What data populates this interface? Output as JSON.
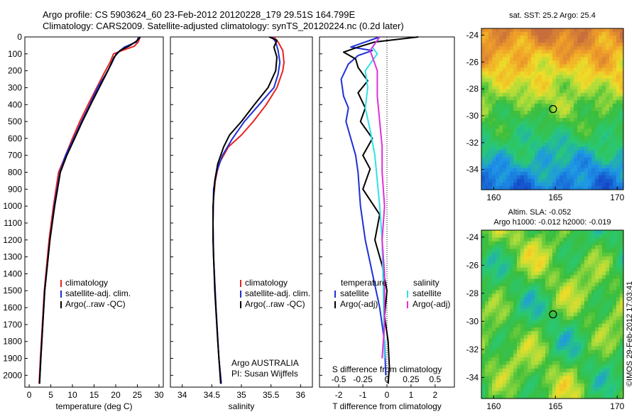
{
  "header": {
    "line1": "Argo profile: CS 5903624_60 23-Feb-2012 20120228_179 29.51S 164.799E",
    "line2": "Climatology: CARS2009. Satellite-adjusted climatology: synTS_20120224.nc (0.2d later)"
  },
  "credit": "©IMOS 29-Feb-2012 17:03:41",
  "colors": {
    "climatology": "#e8231f",
    "satellite": "#1f2fd6",
    "argo": "#000000",
    "sal_satellite": "#2fe2e6",
    "sal_argo": "#e030d8"
  },
  "chart_data": [
    {
      "type": "line",
      "xlabel": "temperature (deg C)",
      "ylabel": "",
      "xlim": [
        -1,
        31
      ],
      "ylim": [
        2070,
        0
      ],
      "xticks": [
        "0",
        "5",
        "10",
        "15",
        "20",
        "25",
        "30"
      ],
      "yticks": [
        "0",
        "100",
        "200",
        "300",
        "400",
        "500",
        "600",
        "700",
        "800",
        "900",
        "1000",
        "1100",
        "1200",
        "1300",
        "1400",
        "1500",
        "1600",
        "1700",
        "1800",
        "1900",
        "2000"
      ],
      "legend": [
        "climatology",
        "satellite-adj. clim.",
        "Argo(..raw -QC)"
      ],
      "series": [
        {
          "name": "climatology",
          "color_key": "climatology",
          "x": [
            25.6,
            25.2,
            24.3,
            21.5,
            19.5,
            18.7,
            17.2,
            15.6,
            13.6,
            11.7,
            10.0,
            8.4,
            6.8,
            5.6,
            4.6,
            3.5,
            2.6,
            2.3
          ],
          "y": [
            0,
            30,
            55,
            80,
            100,
            150,
            220,
            300,
            400,
            500,
            600,
            700,
            800,
            1000,
            1200,
            1500,
            1900,
            2050
          ]
        },
        {
          "name": "satellite-adj. clim.",
          "color_key": "satellite",
          "x": [
            25.3,
            24.8,
            22.0,
            20.1,
            19.0,
            17.7,
            15.8,
            14.0,
            12.1,
            10.3,
            8.4,
            7.1,
            5.8,
            4.8,
            3.6,
            2.7,
            2.4
          ],
          "y": [
            0,
            30,
            60,
            100,
            160,
            220,
            300,
            400,
            500,
            600,
            700,
            800,
            1000,
            1200,
            1500,
            1900,
            2050
          ]
        },
        {
          "name": "Argo(..raw -QC)",
          "color_key": "argo",
          "x": [
            25.7,
            24.8,
            23.0,
            21.0,
            19.6,
            18.2,
            16.4,
            14.4,
            12.3,
            10.5,
            8.7,
            7.2,
            5.9,
            4.8,
            3.6,
            2.7,
            2.4
          ],
          "y": [
            0,
            25,
            55,
            80,
            120,
            200,
            290,
            390,
            500,
            600,
            700,
            800,
            1000,
            1200,
            1500,
            1900,
            2050
          ]
        }
      ]
    },
    {
      "type": "line",
      "xlabel": "salinity",
      "xlim": [
        33.8,
        36.2
      ],
      "ylim": [
        2070,
        0
      ],
      "xticks": [
        "34",
        "34.5",
        "35",
        "35.5",
        "36"
      ],
      "legend": [
        "climatology",
        "satellite-adj. clim.",
        "Argo(..raw -QC)"
      ],
      "annotation": [
        "Argo AUSTRALIA",
        "PI: Susan Wijffels"
      ],
      "series": [
        {
          "name": "climatology",
          "color_key": "climatology",
          "x": [
            35.55,
            35.62,
            35.7,
            35.72,
            35.7,
            35.6,
            35.42,
            35.2,
            35.0,
            34.78,
            34.62,
            34.56,
            34.53,
            34.52,
            34.53,
            34.57,
            34.62,
            34.66
          ],
          "y": [
            0,
            30,
            80,
            150,
            200,
            300,
            400,
            500,
            580,
            650,
            750,
            850,
            950,
            1100,
            1300,
            1600,
            1900,
            2050
          ]
        },
        {
          "name": "satellite-adj. clim.",
          "color_key": "satellite",
          "x": [
            35.52,
            35.58,
            35.62,
            35.65,
            35.62,
            35.55,
            35.3,
            35.05,
            34.85,
            34.68,
            34.58,
            34.53,
            34.52,
            34.53,
            34.57,
            34.62,
            34.66
          ],
          "y": [
            0,
            30,
            80,
            150,
            220,
            300,
            400,
            500,
            600,
            700,
            800,
            900,
            1100,
            1300,
            1600,
            1900,
            2050
          ]
        },
        {
          "name": "Argo(..raw -QC)",
          "color_key": "argo",
          "x": [
            35.47,
            35.6,
            35.55,
            35.6,
            35.58,
            35.45,
            35.22,
            35.0,
            34.8,
            34.7,
            34.6,
            34.55,
            34.52,
            34.52,
            34.55,
            34.6,
            34.65
          ],
          "y": [
            0,
            20,
            60,
            120,
            200,
            300,
            400,
            500,
            580,
            650,
            750,
            850,
            1000,
            1200,
            1500,
            1800,
            2050
          ]
        }
      ]
    },
    {
      "type": "line",
      "xlabel": "T difference from climatology",
      "top_xlabel": "S difference from climatology",
      "xlim": [
        -2.8,
        2.8
      ],
      "ylim": [
        2070,
        0
      ],
      "xticks": [
        "-2",
        "-1",
        "0",
        "1",
        "2"
      ],
      "top_xticks": [
        "-0.5",
        "-0.25",
        "0",
        "0.25",
        "0.5"
      ],
      "legend_headers": [
        "temperature",
        "salinity"
      ],
      "legend": [
        "satellite",
        "Argo(-adj)",
        "satellite",
        "Argo(-adj)"
      ],
      "series": [
        {
          "name": "satellite",
          "group": "temperature",
          "color_key": "satellite",
          "x": [
            -0.3,
            -1.5,
            -0.6,
            -1.2,
            -1.6,
            -1.9,
            -1.8,
            -1.6,
            -1.7,
            -1.5,
            -1.3,
            -1.2,
            -1.1,
            -0.9,
            -0.6,
            -0.3,
            -0.1,
            -0.05
          ],
          "y": [
            0,
            60,
            80,
            110,
            160,
            250,
            350,
            420,
            500,
            600,
            700,
            800,
            1000,
            1200,
            1400,
            1600,
            1800,
            2000
          ]
        },
        {
          "name": "Argo(-adj)",
          "group": "temperature",
          "color_key": "argo",
          "x": [
            1.3,
            -0.5,
            -1.2,
            -1.8,
            -1.3,
            -1.2,
            -0.8,
            -1.2,
            -0.9,
            -1.1,
            -0.6,
            -1.0,
            -0.7,
            -1.0,
            -0.3,
            -0.5,
            -0.2,
            0.0,
            -0.1,
            0.05,
            0.1,
            0.05
          ],
          "y": [
            0,
            30,
            60,
            90,
            130,
            180,
            260,
            330,
            420,
            500,
            600,
            700,
            780,
            900,
            1050,
            1200,
            1350,
            1500,
            1650,
            1800,
            1950,
            2050
          ]
        },
        {
          "name": "satellite",
          "group": "salinity",
          "color_key": "sal_satellite",
          "x": [
            -0.3,
            -0.6,
            -0.4,
            -0.9,
            -0.8,
            -0.9,
            -0.7,
            -0.5,
            -0.4,
            -0.3,
            -0.2,
            -0.15,
            -0.1
          ],
          "y": [
            0,
            60,
            100,
            200,
            300,
            420,
            550,
            700,
            850,
            1000,
            1200,
            1500,
            1900
          ]
        },
        {
          "name": "Argo(-adj)",
          "group": "salinity",
          "color_key": "sal_argo",
          "x": [
            -0.3,
            -0.7,
            -0.4,
            -0.4,
            -0.3,
            -0.2,
            -0.2,
            -0.1,
            -0.2,
            -0.1,
            -0.1,
            -0.2
          ],
          "y": [
            0,
            80,
            200,
            350,
            500,
            650,
            800,
            1000,
            1200,
            1400,
            1700,
            1900
          ]
        }
      ]
    },
    {
      "type": "heatmap",
      "title": "sat. SST: 25.2  Argo: 25.4",
      "xlim": [
        159,
        170.5
      ],
      "ylim": [
        -35.5,
        -23.5
      ],
      "xticks": [
        "160",
        "165",
        "170"
      ],
      "yticks": [
        "-24",
        "-26",
        "-28",
        "-30",
        "-32",
        "-34"
      ],
      "marker": {
        "lon": 164.8,
        "lat": -29.5
      }
    },
    {
      "type": "heatmap",
      "title": "Altim. SLA: -0.052",
      "subtitle": "Argo h1000: -0.012 h2000: -0.019",
      "xlim": [
        159,
        170.5
      ],
      "ylim": [
        -35.5,
        -23.5
      ],
      "xticks": [
        "160",
        "165",
        "170"
      ],
      "yticks": [
        "-24",
        "-26",
        "-28",
        "-30",
        "-32",
        "-34"
      ],
      "marker": {
        "lon": 164.8,
        "lat": -29.5
      }
    }
  ]
}
